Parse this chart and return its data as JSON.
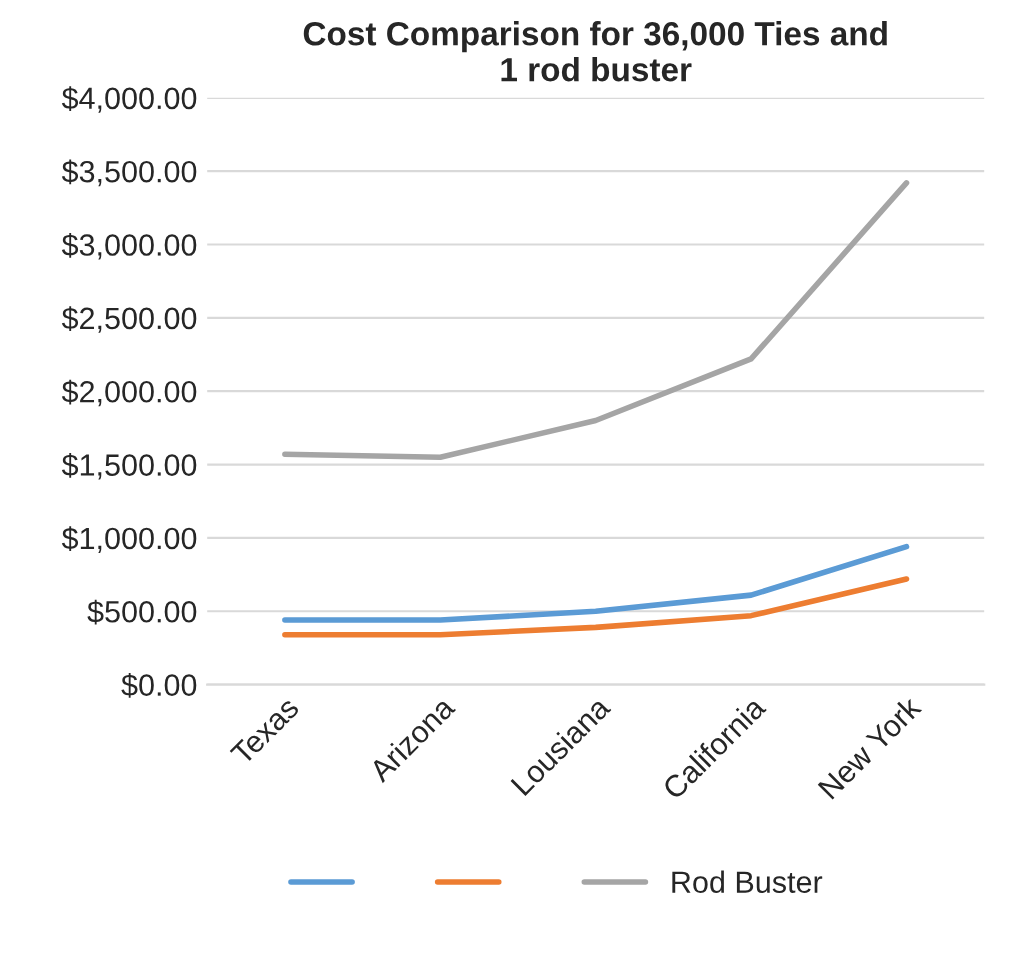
{
  "chart_data": {
    "type": "line",
    "title": "Cost Comparison for 36,000 Ties and\n1 rod buster",
    "categories": [
      "Texas",
      "Arizona",
      "Lousiana",
      "California",
      "New York"
    ],
    "series": [
      {
        "color": "#5b9bd5",
        "values": [
          440,
          440,
          500,
          610,
          940
        ]
      },
      {
        "color": "#ed7d31",
        "values": [
          340,
          340,
          390,
          470,
          720
        ]
      },
      {
        "name": "Rod Buster",
        "color": "#a5a5a5",
        "values": [
          1570,
          1550,
          1800,
          2220,
          3420
        ]
      }
    ],
    "ylim": [
      0,
      4000
    ],
    "yticks": [
      {
        "value": 0,
        "label": "$0.00"
      },
      {
        "value": 500,
        "label": "$500.00"
      },
      {
        "value": 1000,
        "label": "$1,000.00"
      },
      {
        "value": 1500,
        "label": "$1,500.00"
      },
      {
        "value": 2000,
        "label": "$2,000.00"
      },
      {
        "value": 2500,
        "label": "$2,500.00"
      },
      {
        "value": 3000,
        "label": "$3,000.00"
      },
      {
        "value": 3500,
        "label": "$3,500.00"
      },
      {
        "value": 4000,
        "label": "$4,000.00"
      }
    ],
    "grid": "y",
    "legend": "bottom",
    "marker": "none",
    "line_style": "solid"
  }
}
